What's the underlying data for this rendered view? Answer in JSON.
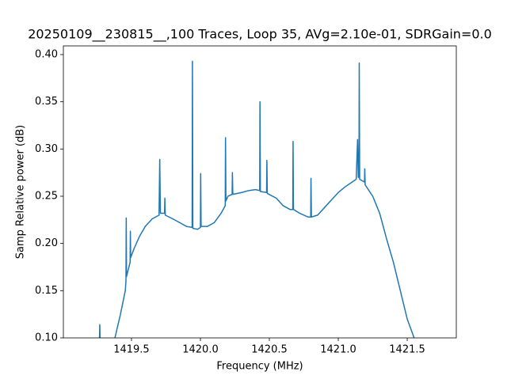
{
  "chart_data": {
    "type": "line",
    "title": "20250109__230815__,100 Traces, Loop 35, AVg=2.10e-01, SDRGain=0.0",
    "x_label": "Frequency (MHz)",
    "y_label": "Samp Relative power (dB)",
    "xlim": [
      1419.006,
      1421.856
    ],
    "ylim": [
      0.1,
      0.4092
    ],
    "xticks": [
      1419.5,
      {
        "value": 1420,
        "label": "1420.0"
      },
      1420.5,
      {
        "value": 1421,
        "label": "1421.0"
      },
      1421.5
    ],
    "yticks": [
      {
        "value": 0.1,
        "label": "0.10"
      },
      0.15,
      {
        "value": 0.2,
        "label": "0.20"
      },
      0.25,
      {
        "value": 0.3,
        "label": "0.30"
      },
      0.35,
      {
        "value": 0.4,
        "label": "0.40"
      }
    ],
    "x": [
      1419.268,
      1419.27,
      1419.272,
      1419.3,
      1419.38,
      1419.42,
      1419.455,
      1419.46,
      1419.462,
      1419.464,
      1419.49,
      1419.492,
      1419.494,
      1419.52,
      1419.56,
      1419.6,
      1419.65,
      1419.7,
      1419.705,
      1419.71,
      1419.74,
      1419.742,
      1419.745,
      1419.8,
      1419.85,
      1419.9,
      1419.94,
      1419.942,
      1419.945,
      1419.98,
      1420.0,
      1420.002,
      1420.005,
      1420.05,
      1420.1,
      1420.15,
      1420.18,
      1420.182,
      1420.185,
      1420.2,
      1420.23,
      1420.232,
      1420.235,
      1420.3,
      1420.35,
      1420.4,
      1420.43,
      1420.432,
      1420.435,
      1420.48,
      1420.482,
      1420.485,
      1420.55,
      1420.6,
      1420.65,
      1420.67,
      1420.672,
      1420.675,
      1420.72,
      1420.78,
      1420.8,
      1420.802,
      1420.805,
      1420.85,
      1420.9,
      1420.95,
      1421.0,
      1421.05,
      1421.1,
      1421.13,
      1421.14,
      1421.145,
      1421.15,
      1421.152,
      1421.155,
      1421.19,
      1421.192,
      1421.195,
      1421.25,
      1421.3,
      1421.35,
      1421.4,
      1421.45,
      1421.5,
      1421.55
    ],
    "series": [
      {
        "color": "#1f77b4",
        "values": [
          0.1,
          0.114,
          0.1,
          null,
          0.1,
          0.125,
          0.15,
          0.16,
          0.227,
          0.165,
          0.18,
          0.213,
          0.185,
          0.195,
          0.208,
          0.218,
          0.226,
          0.23,
          0.289,
          0.232,
          0.232,
          0.248,
          0.23,
          0.226,
          0.222,
          0.218,
          0.217,
          0.393,
          0.216,
          0.215,
          0.217,
          0.274,
          0.218,
          0.218,
          0.222,
          0.232,
          0.24,
          0.312,
          0.245,
          0.25,
          0.252,
          0.275,
          0.252,
          0.254,
          0.256,
          0.257,
          0.256,
          0.35,
          0.255,
          0.254,
          0.288,
          0.253,
          0.248,
          0.24,
          0.236,
          0.236,
          0.308,
          0.236,
          0.232,
          0.228,
          0.228,
          0.269,
          0.228,
          0.23,
          0.238,
          0.246,
          0.254,
          0.26,
          0.265,
          0.268,
          0.31,
          0.27,
          0.27,
          0.391,
          0.268,
          0.265,
          0.279,
          0.262,
          0.25,
          0.232,
          0.205,
          0.18,
          0.15,
          0.12,
          0.1
        ]
      }
    ]
  }
}
